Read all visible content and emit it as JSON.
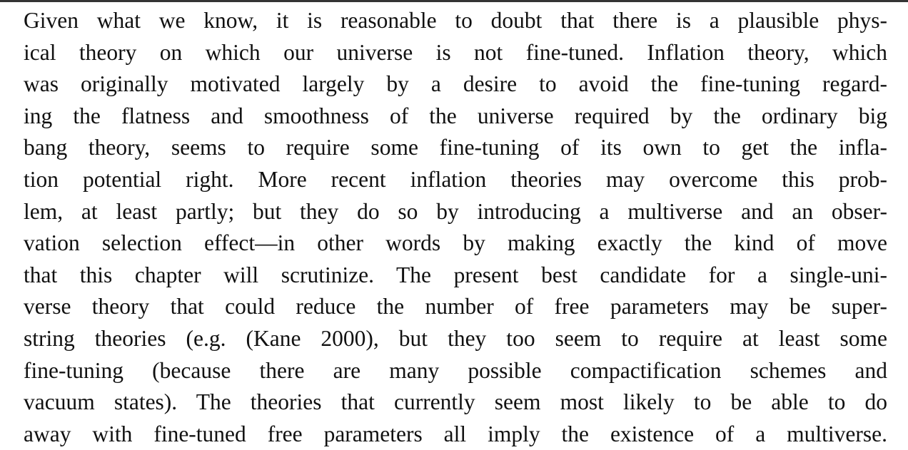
{
  "document": {
    "lines": [
      "Given what we know, it is reasonable to doubt that there is a plausible phys-",
      "ical theory on which our universe is not fine-tuned. Inflation theory, which",
      "was originally motivated largely by a desire to avoid the fine-tuning regard-",
      "ing the flatness and smoothness of the universe required by the ordinary big",
      "bang theory, seems to require some fine-tuning of its own to get the infla-",
      "tion potential right. More recent inflation theories may overcome this prob-",
      "lem, at least partly; but they do so by introducing a multiverse and an obser-",
      "vation selection effect—in other words by making exactly the kind of move",
      "that this chapter will scrutinize. The present best candidate for a single-uni-",
      "verse theory that could reduce the number of free parameters may be super-",
      "string theories (e.g. (Kane 2000), but they too seem to require at least some",
      "fine-tuning (because there are many possible compactification schemes and",
      "vacuum states). The theories that currently seem most likely to be able to do",
      "away with fine-tuned free parameters all imply the existence of a multiverse."
    ]
  }
}
